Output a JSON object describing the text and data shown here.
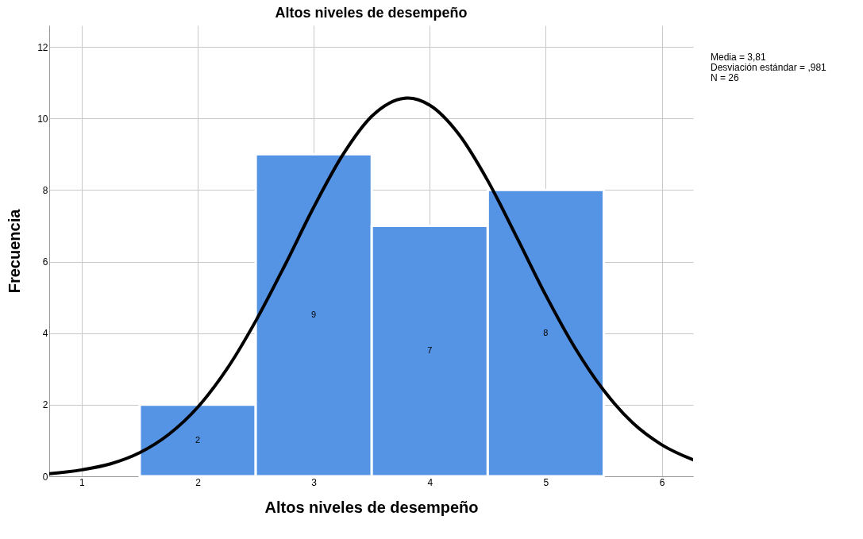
{
  "chart_data": {
    "type": "histogram",
    "title": "Altos niveles de desempeño",
    "xlabel": "Altos niveles de desempeño",
    "ylabel": "Frecuencia",
    "bins": [
      1.5,
      2.5,
      3.5,
      4.5,
      5.5
    ],
    "values": [
      2,
      9,
      7,
      8
    ],
    "color": "#5594e4",
    "value_labels": [
      "2",
      "9",
      "7",
      "8"
    ],
    "series": [
      {
        "type": "line",
        "color": "#000000",
        "x": [
          0.72,
          1.0,
          1.25,
          1.5,
          1.75,
          2.0,
          2.25,
          2.5,
          2.75,
          3.0,
          3.25,
          3.5,
          3.81,
          4.0,
          4.25,
          4.5,
          4.75,
          5.0,
          5.25,
          5.5,
          5.75,
          6.0,
          6.27
        ],
        "values": [
          0.07,
          0.18,
          0.35,
          0.66,
          1.17,
          1.93,
          2.99,
          4.34,
          5.89,
          7.52,
          8.98,
          10.06,
          10.57,
          10.37,
          9.56,
          8.26,
          6.68,
          5.06,
          3.6,
          2.4,
          1.49,
          0.88,
          0.46
        ]
      }
    ],
    "xlim": [
      0.72,
      6.27
    ],
    "xticks": [
      1,
      2,
      3,
      4,
      5,
      6
    ],
    "ylim": [
      0,
      12.6
    ],
    "yticks": [
      0,
      2,
      4,
      6,
      8,
      10,
      12
    ],
    "grid": true,
    "annotations": [
      "Media = 3,81",
      "Desviación estándar = ,981",
      "N = 26"
    ]
  }
}
